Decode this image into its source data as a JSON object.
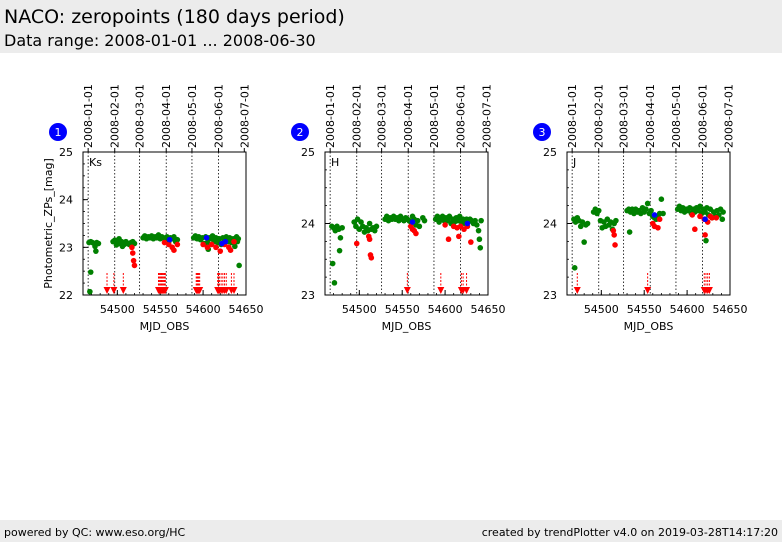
{
  "header": {
    "title": "NACO: zeropoints (180 days period)",
    "subtitle": "Data range: 2008-01-01 ... 2008-06-30"
  },
  "footer": {
    "left": "powered by QC: www.eso.org/HC",
    "right": "created by trendPlotter v4.0 on 2019-03-28T14:17:20"
  },
  "colors": {
    "green": "#008000",
    "red": "#ff0000",
    "blue": "#0000ff",
    "badge": "#0000ff"
  },
  "chart_data": [
    {
      "type": "scatter",
      "badge": "1",
      "label": "Ks",
      "xlabel": "MJD_OBS",
      "ylabel": "Photometric_ZPs_[mag]",
      "xlim": [
        54460,
        54650
      ],
      "ylim": [
        22,
        25
      ],
      "xticks": [
        54500,
        54550,
        54600,
        54650
      ],
      "yticks": [
        22,
        23,
        24,
        25
      ],
      "date_ticks": [
        {
          "label": "2008-01-01",
          "mjd": 54466
        },
        {
          "label": "2008-02-01",
          "mjd": 54497
        },
        {
          "label": "2008-03-01",
          "mjd": 54526
        },
        {
          "label": "2008-04-01",
          "mjd": 54557
        },
        {
          "label": "2008-05-01",
          "mjd": 54587
        },
        {
          "label": "2008-06-01",
          "mjd": 54618
        },
        {
          "label": "2008-07-01",
          "mjd": 54648
        }
      ],
      "vlines": [
        54466,
        54497,
        54526,
        54557,
        54587,
        54618
      ],
      "green": [
        [
          54467,
          23.1
        ],
        [
          54469,
          23.12
        ],
        [
          54471,
          23.1
        ],
        [
          54473,
          23.08
        ],
        [
          54474,
          23.02
        ],
        [
          54475,
          22.92
        ],
        [
          54476,
          23.1
        ],
        [
          54478,
          23.08
        ],
        [
          54469,
          22.48
        ],
        [
          54468,
          22.07
        ],
        [
          54495,
          23.12
        ],
        [
          54497,
          23.15
        ],
        [
          54499,
          23.05
        ],
        [
          54500,
          23.1
        ],
        [
          54502,
          23.18
        ],
        [
          54503,
          23.08
        ],
        [
          54505,
          23.12
        ],
        [
          54506,
          23.02
        ],
        [
          54508,
          23.06
        ],
        [
          54510,
          23.12
        ],
        [
          54512,
          23.08
        ],
        [
          54514,
          23.06
        ],
        [
          54516,
          23.1
        ],
        [
          54518,
          23.12
        ],
        [
          54520,
          23.08
        ],
        [
          54530,
          23.2
        ],
        [
          54532,
          23.24
        ],
        [
          54534,
          23.18
        ],
        [
          54536,
          23.22
        ],
        [
          54538,
          23.2
        ],
        [
          54540,
          23.24
        ],
        [
          54542,
          23.18
        ],
        [
          54544,
          23.22
        ],
        [
          54546,
          23.2
        ],
        [
          54548,
          23.26
        ],
        [
          54550,
          23.18
        ],
        [
          54552,
          23.22
        ],
        [
          54554,
          23.2
        ],
        [
          54556,
          23.16
        ],
        [
          54558,
          23.22
        ],
        [
          54560,
          23.12
        ],
        [
          54562,
          23.2
        ],
        [
          54564,
          23.18
        ],
        [
          54566,
          23.22
        ],
        [
          54568,
          23.12
        ],
        [
          54570,
          23.16
        ],
        [
          54589,
          23.2
        ],
        [
          54591,
          23.24
        ],
        [
          54593,
          23.18
        ],
        [
          54595,
          23.22
        ],
        [
          54597,
          23.16
        ],
        [
          54599,
          23.2
        ],
        [
          54601,
          23.08
        ],
        [
          54603,
          23.22
        ],
        [
          54605,
          23.1
        ],
        [
          54607,
          23.2
        ],
        [
          54609,
          23.18
        ],
        [
          54611,
          23.24
        ],
        [
          54613,
          23.12
        ],
        [
          54615,
          23.2
        ],
        [
          54617,
          23.1
        ],
        [
          54619,
          23.18
        ],
        [
          54621,
          23.06
        ],
        [
          54623,
          23.2
        ],
        [
          54625,
          23.14
        ],
        [
          54627,
          23.22
        ],
        [
          54629,
          23.12
        ],
        [
          54631,
          23.2
        ],
        [
          54633,
          23.1
        ],
        [
          54635,
          23.18
        ],
        [
          54637,
          23.02
        ],
        [
          54639,
          23.22
        ],
        [
          54640,
          23.12
        ],
        [
          54641,
          23.18
        ],
        [
          54642,
          22.62
        ],
        [
          54606,
          22.96
        ]
      ],
      "red": [
        [
          54517,
          23.0
        ],
        [
          54518,
          22.88
        ],
        [
          54519,
          22.72
        ],
        [
          54520,
          22.62
        ],
        [
          54555,
          23.1
        ],
        [
          54560,
          23.06
        ],
        [
          54564,
          23.0
        ],
        [
          54566,
          22.94
        ],
        [
          54570,
          23.06
        ],
        [
          54600,
          23.06
        ],
        [
          54605,
          23.0
        ],
        [
          54610,
          23.06
        ],
        [
          54615,
          23.0
        ],
        [
          54620,
          22.92
        ],
        [
          54625,
          23.06
        ],
        [
          54630,
          23.0
        ],
        [
          54632,
          22.94
        ],
        [
          54636,
          23.12
        ]
      ],
      "blue": [
        [
          54561,
          23.16
        ],
        [
          54604,
          23.2
        ],
        [
          54622,
          23.08
        ],
        [
          54626,
          23.12
        ]
      ],
      "arrows": [
        54488,
        54496,
        54507,
        54548,
        54549,
        54550,
        54551,
        54552,
        54553,
        54554,
        54555,
        54556,
        54592,
        54593,
        54594,
        54595,
        54596,
        54617,
        54618,
        54619,
        54621,
        54623,
        54625,
        54627,
        54633,
        54636
      ]
    },
    {
      "type": "scatter",
      "badge": "2",
      "label": "H",
      "xlabel": "MJD_OBS",
      "ylabel": "",
      "xlim": [
        54460,
        54650
      ],
      "ylim": [
        23,
        25
      ],
      "xticks": [
        54500,
        54550,
        54600,
        54650
      ],
      "yticks": [
        23,
        24,
        25
      ],
      "date_ticks": [
        {
          "label": "2008-01-01",
          "mjd": 54466
        },
        {
          "label": "2008-02-01",
          "mjd": 54497
        },
        {
          "label": "2008-03-01",
          "mjd": 54526
        },
        {
          "label": "2008-04-01",
          "mjd": 54557
        },
        {
          "label": "2008-05-01",
          "mjd": 54587
        },
        {
          "label": "2008-06-01",
          "mjd": 54618
        },
        {
          "label": "2008-07-01",
          "mjd": 54648
        }
      ],
      "vlines": [
        54466,
        54497,
        54526,
        54557,
        54587,
        54618
      ],
      "green": [
        [
          54468,
          23.96
        ],
        [
          54470,
          23.94
        ],
        [
          54472,
          23.9
        ],
        [
          54474,
          23.96
        ],
        [
          54476,
          23.92
        ],
        [
          54478,
          23.8
        ],
        [
          54469,
          23.44
        ],
        [
          54471,
          23.17
        ],
        [
          54477,
          23.62
        ],
        [
          54480,
          23.94
        ],
        [
          54494,
          24.02
        ],
        [
          54496,
          23.96
        ],
        [
          54498,
          24.06
        ],
        [
          54500,
          23.92
        ],
        [
          54502,
          24.02
        ],
        [
          54504,
          23.96
        ],
        [
          54506,
          23.88
        ],
        [
          54508,
          23.94
        ],
        [
          54510,
          23.9
        ],
        [
          54512,
          24.0
        ],
        [
          54514,
          23.92
        ],
        [
          54516,
          23.94
        ],
        [
          54518,
          23.9
        ],
        [
          54520,
          23.96
        ],
        [
          54530,
          24.06
        ],
        [
          54532,
          24.1
        ],
        [
          54534,
          24.04
        ],
        [
          54536,
          24.08
        ],
        [
          54538,
          24.06
        ],
        [
          54540,
          24.1
        ],
        [
          54542,
          24.06
        ],
        [
          54544,
          24.08
        ],
        [
          54546,
          24.04
        ],
        [
          54548,
          24.1
        ],
        [
          54550,
          24.06
        ],
        [
          54552,
          24.04
        ],
        [
          54554,
          24.08
        ],
        [
          54556,
          24.06
        ],
        [
          54558,
          24.04
        ],
        [
          54560,
          24.02
        ],
        [
          54562,
          24.1
        ],
        [
          54564,
          24.06
        ],
        [
          54566,
          23.98
        ],
        [
          54568,
          24.04
        ],
        [
          54570,
          23.96
        ],
        [
          54574,
          24.08
        ],
        [
          54576,
          24.04
        ],
        [
          54589,
          24.06
        ],
        [
          54591,
          24.1
        ],
        [
          54593,
          24.02
        ],
        [
          54595,
          24.06
        ],
        [
          54597,
          24.1
        ],
        [
          54599,
          24.04
        ],
        [
          54601,
          24.08
        ],
        [
          54603,
          24.04
        ],
        [
          54605,
          24.1
        ],
        [
          54607,
          24.0
        ],
        [
          54609,
          24.06
        ],
        [
          54611,
          24.02
        ],
        [
          54613,
          24.08
        ],
        [
          54615,
          24.04
        ],
        [
          54617,
          24.1
        ],
        [
          54619,
          24.02
        ],
        [
          54621,
          24.06
        ],
        [
          54623,
          24.0
        ],
        [
          54625,
          24.06
        ],
        [
          54627,
          24.02
        ],
        [
          54629,
          24.06
        ],
        [
          54631,
          24.04
        ],
        [
          54633,
          24.0
        ],
        [
          54635,
          24.04
        ],
        [
          54637,
          23.98
        ],
        [
          54639,
          23.9
        ],
        [
          54640,
          23.78
        ],
        [
          54641,
          23.66
        ],
        [
          54642,
          24.04
        ]
      ],
      "red": [
        [
          54497,
          23.72
        ],
        [
          54511,
          23.82
        ],
        [
          54512,
          23.78
        ],
        [
          54513,
          23.56
        ],
        [
          54514,
          23.52
        ],
        [
          54560,
          23.96
        ],
        [
          54562,
          23.92
        ],
        [
          54564,
          23.9
        ],
        [
          54566,
          23.86
        ],
        [
          54600,
          23.98
        ],
        [
          54604,
          23.78
        ],
        [
          54610,
          23.96
        ],
        [
          54614,
          23.94
        ],
        [
          54616,
          23.82
        ],
        [
          54618,
          23.96
        ],
        [
          54622,
          23.92
        ],
        [
          54626,
          23.96
        ],
        [
          54630,
          23.74
        ]
      ],
      "blue": [
        [
          54562,
          24.02
        ],
        [
          54626,
          24.0
        ]
      ],
      "arrows": [
        54556,
        54595,
        54619,
        54621,
        54625
      ]
    },
    {
      "type": "scatter",
      "badge": "3",
      "label": "J",
      "xlabel": "MJD_OBS",
      "ylabel": "",
      "xlim": [
        54460,
        54650
      ],
      "ylim": [
        23,
        25
      ],
      "xticks": [
        54500,
        54550,
        54600,
        54650
      ],
      "yticks": [
        23,
        24,
        25
      ],
      "date_ticks": [
        {
          "label": "2008-01-01",
          "mjd": 54466
        },
        {
          "label": "2008-02-01",
          "mjd": 54497
        },
        {
          "label": "2008-03-01",
          "mjd": 54526
        },
        {
          "label": "2008-04-01",
          "mjd": 54557
        },
        {
          "label": "2008-05-01",
          "mjd": 54587
        },
        {
          "label": "2008-06-01",
          "mjd": 54618
        },
        {
          "label": "2008-07-01",
          "mjd": 54648
        }
      ],
      "vlines": [
        54466,
        54497,
        54526,
        54557,
        54587,
        54618
      ],
      "green": [
        [
          54468,
          24.06
        ],
        [
          54470,
          24.02
        ],
        [
          54472,
          24.08
        ],
        [
          54474,
          24.04
        ],
        [
          54476,
          23.96
        ],
        [
          54478,
          24.02
        ],
        [
          54480,
          23.74
        ],
        [
          54482,
          23.98
        ],
        [
          54484,
          24.0
        ],
        [
          54469,
          23.38
        ],
        [
          54491,
          24.16
        ],
        [
          54493,
          24.2
        ],
        [
          54495,
          24.14
        ],
        [
          54497,
          24.18
        ],
        [
          54499,
          24.04
        ],
        [
          54501,
          23.94
        ],
        [
          54503,
          24.02
        ],
        [
          54505,
          23.96
        ],
        [
          54507,
          24.06
        ],
        [
          54509,
          23.98
        ],
        [
          54511,
          24.02
        ],
        [
          54513,
          23.92
        ],
        [
          54515,
          24.0
        ],
        [
          54517,
          24.04
        ],
        [
          54530,
          24.18
        ],
        [
          54532,
          24.2
        ],
        [
          54534,
          24.16
        ],
        [
          54536,
          24.2
        ],
        [
          54538,
          24.14
        ],
        [
          54540,
          24.2
        ],
        [
          54542,
          24.16
        ],
        [
          54544,
          24.18
        ],
        [
          54546,
          24.14
        ],
        [
          54548,
          24.22
        ],
        [
          54550,
          24.16
        ],
        [
          54552,
          24.2
        ],
        [
          54554,
          24.28
        ],
        [
          54556,
          24.14
        ],
        [
          54558,
          24.18
        ],
        [
          54560,
          24.1
        ],
        [
          54562,
          24.08
        ],
        [
          54564,
          24.06
        ],
        [
          54566,
          24.1
        ],
        [
          54568,
          24.14
        ],
        [
          54570,
          24.34
        ],
        [
          54572,
          24.14
        ],
        [
          54589,
          24.2
        ],
        [
          54591,
          24.24
        ],
        [
          54593,
          24.18
        ],
        [
          54595,
          24.22
        ],
        [
          54597,
          24.16
        ],
        [
          54599,
          24.2
        ],
        [
          54601,
          24.18
        ],
        [
          54603,
          24.22
        ],
        [
          54605,
          24.14
        ],
        [
          54607,
          24.2
        ],
        [
          54609,
          24.16
        ],
        [
          54611,
          24.22
        ],
        [
          54613,
          24.18
        ],
        [
          54615,
          24.24
        ],
        [
          54617,
          24.14
        ],
        [
          54619,
          24.2
        ],
        [
          54621,
          24.16
        ],
        [
          54623,
          24.22
        ],
        [
          54625,
          24.12
        ],
        [
          54627,
          24.2
        ],
        [
          54629,
          24.08
        ],
        [
          54631,
          24.16
        ],
        [
          54633,
          24.1
        ],
        [
          54635,
          24.18
        ],
        [
          54637,
          24.12
        ],
        [
          54639,
          24.2
        ],
        [
          54641,
          24.06
        ],
        [
          54642,
          24.16
        ],
        [
          54533,
          23.88
        ],
        [
          54622,
          23.76
        ]
      ],
      "red": [
        [
          54514,
          23.9
        ],
        [
          54515,
          23.84
        ],
        [
          54516,
          23.7
        ],
        [
          54560,
          24.0
        ],
        [
          54562,
          23.96
        ],
        [
          54566,
          23.94
        ],
        [
          54568,
          24.06
        ],
        [
          54606,
          24.12
        ],
        [
          54609,
          23.92
        ],
        [
          54615,
          24.1
        ],
        [
          54620,
          24.06
        ],
        [
          54624,
          24.02
        ],
        [
          54627,
          24.1
        ],
        [
          54629,
          24.08
        ],
        [
          54634,
          24.08
        ],
        [
          54621,
          23.84
        ]
      ],
      "blue": [
        [
          54562,
          24.12
        ],
        [
          54621,
          24.06
        ]
      ],
      "arrows": [
        54472,
        54554,
        54620,
        54622,
        54624,
        54626
      ]
    }
  ]
}
